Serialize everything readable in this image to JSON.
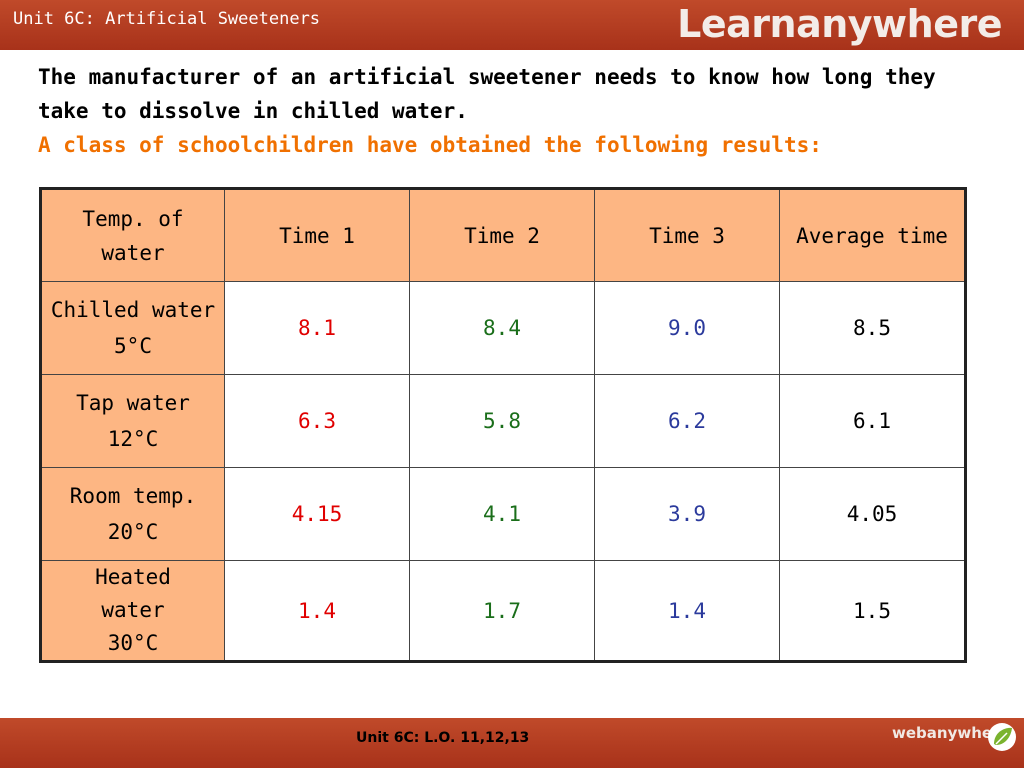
{
  "header": {
    "unit_title": "Unit 6C: Artificial Sweeteners",
    "brand": "Learnanywhere"
  },
  "intro": {
    "line1": "The manufacturer of an artificial sweetener needs to know how long they take to dissolve in chilled water.",
    "line2": "A class of schoolchildren have obtained the following results:"
  },
  "table": {
    "headers": [
      "Temp. of water",
      "Time 1",
      "Time 2",
      "Time 3",
      "Average time"
    ],
    "rows": [
      {
        "label": "Chilled water",
        "temp": "5°C",
        "t1": "8.1",
        "t2": "8.4",
        "t3": "9.0",
        "avg": "8.5"
      },
      {
        "label": "Tap water",
        "temp": "12°C",
        "t1": "6.3",
        "t2": "5.8",
        "t3": "6.2",
        "avg": "6.1"
      },
      {
        "label": "Room temp.",
        "temp": "20°C",
        "t1": "4.15",
        "t2": "4.1",
        "t3": "3.9",
        "avg": "4.05"
      },
      {
        "label": "Heated water",
        "temp": "30°C",
        "t1": "1.4",
        "t2": "1.7",
        "t3": "1.4",
        "avg": "1.5"
      }
    ]
  },
  "footer": {
    "text": "Unit 6C: L.O. 11,12,13",
    "brand": "webanywhere",
    "logo_icon": "leaf-logo-icon"
  },
  "colors": {
    "bar": "#b03a1e",
    "header_cell": "#fdb683",
    "orange_text": "#f07000",
    "time1": "#e00000",
    "time2": "#1a6e1a",
    "time3": "#2b3a9c"
  }
}
